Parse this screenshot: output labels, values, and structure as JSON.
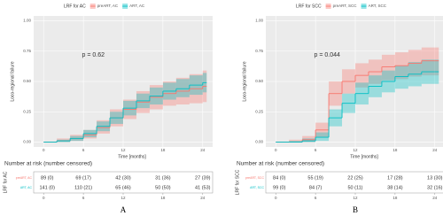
{
  "chart_data": [
    {
      "type": "step",
      "legend_title": "LRF for AC",
      "annotation": "p = 0.62",
      "panel_label": "A",
      "ylabel": "Loco-regional failure",
      "xlabel": "Time [months]",
      "xlim": [
        -1.5,
        25.5
      ],
      "ylim": [
        -0.04,
        1.04
      ],
      "xticks": [
        0,
        6,
        12,
        18,
        24
      ],
      "yticks": [
        {
          "value": 0,
          "label": "0.00"
        },
        {
          "value": 0.25,
          "label": "0.25"
        },
        {
          "value": 0.5,
          "label": "0.50"
        },
        {
          "value": 0.75,
          "label": "0.75"
        },
        {
          "value": 1,
          "label": "1.00"
        }
      ],
      "grid": true,
      "series": [
        {
          "name": "preART, AC",
          "color": "#f8766d",
          "x": [
            0,
            2,
            4,
            6,
            8,
            10,
            12,
            14,
            16,
            18,
            20,
            22,
            24
          ],
          "values": [
            0,
            0.01,
            0.03,
            0.06,
            0.12,
            0.2,
            0.27,
            0.33,
            0.37,
            0.4,
            0.42,
            0.44,
            0.46
          ],
          "lower": [
            0,
            0,
            0.01,
            0.03,
            0.07,
            0.13,
            0.19,
            0.24,
            0.27,
            0.3,
            0.31,
            0.32,
            0.33
          ],
          "upper": [
            0,
            0.03,
            0.06,
            0.1,
            0.18,
            0.27,
            0.35,
            0.42,
            0.47,
            0.5,
            0.53,
            0.56,
            0.59
          ]
        },
        {
          "name": "ART, AC",
          "color": "#00bfc4",
          "x": [
            0,
            2,
            4,
            6,
            8,
            10,
            12,
            14,
            16,
            18,
            20,
            22,
            24
          ],
          "values": [
            0,
            0.01,
            0.03,
            0.07,
            0.13,
            0.2,
            0.28,
            0.34,
            0.38,
            0.42,
            0.44,
            0.47,
            0.49
          ],
          "lower": [
            0,
            0,
            0.01,
            0.04,
            0.09,
            0.15,
            0.22,
            0.28,
            0.31,
            0.35,
            0.37,
            0.39,
            0.41
          ],
          "upper": [
            0,
            0.02,
            0.05,
            0.1,
            0.17,
            0.25,
            0.34,
            0.4,
            0.45,
            0.49,
            0.52,
            0.55,
            0.57
          ]
        }
      ],
      "risk_table": {
        "title": "Number at risk (number censored)",
        "ylabel": "LRF for AC",
        "rows": [
          {
            "name": "preART, AC",
            "values": [
              "89 (0)",
              "69 (17)",
              "42 (30)",
              "31 (36)",
              "27 (39)"
            ]
          },
          {
            "name": "ART, AC",
            "values": [
              "141 (0)",
              "110 (21)",
              "65 (46)",
              "50 (50)",
              "41 (53)"
            ]
          }
        ]
      }
    },
    {
      "type": "step",
      "legend_title": "LRF for SCC",
      "annotation": "p = 0.044",
      "panel_label": "B",
      "ylabel": "Loco-regional failure",
      "xlabel": "Time [months]",
      "xlim": [
        -1.5,
        25.5
      ],
      "ylim": [
        -0.04,
        1.04
      ],
      "xticks": [
        0,
        6,
        12,
        18,
        24
      ],
      "yticks": [
        {
          "value": 0,
          "label": "0.00"
        },
        {
          "value": 0.25,
          "label": "0.25"
        },
        {
          "value": 0.5,
          "label": "0.50"
        },
        {
          "value": 0.75,
          "label": "0.75"
        },
        {
          "value": 1,
          "label": "1.00"
        }
      ],
      "grid": true,
      "series": [
        {
          "name": "preART, SCC",
          "color": "#f8766d",
          "x": [
            0,
            2,
            4,
            6,
            8,
            10,
            12,
            14,
            16,
            18,
            20,
            22,
            24
          ],
          "values": [
            0,
            0,
            0.02,
            0.1,
            0.4,
            0.5,
            0.55,
            0.58,
            0.62,
            0.63,
            0.65,
            0.67,
            0.67
          ],
          "lower": [
            0,
            0,
            0,
            0.04,
            0.3,
            0.4,
            0.45,
            0.48,
            0.51,
            0.52,
            0.54,
            0.55,
            0.55
          ],
          "upper": [
            0,
            0.02,
            0.05,
            0.16,
            0.5,
            0.6,
            0.65,
            0.68,
            0.72,
            0.74,
            0.76,
            0.78,
            0.78
          ]
        },
        {
          "name": "ART, SCC",
          "color": "#00bfc4",
          "x": [
            0,
            2,
            4,
            6,
            8,
            10,
            12,
            14,
            16,
            18,
            20,
            22,
            24
          ],
          "values": [
            0,
            0,
            0.01,
            0.04,
            0.2,
            0.32,
            0.4,
            0.46,
            0.5,
            0.54,
            0.56,
            0.58,
            0.58
          ],
          "lower": [
            0,
            0,
            0,
            0.01,
            0.13,
            0.24,
            0.31,
            0.37,
            0.41,
            0.44,
            0.46,
            0.48,
            0.48
          ],
          "upper": [
            0,
            0.01,
            0.03,
            0.08,
            0.27,
            0.4,
            0.49,
            0.55,
            0.59,
            0.63,
            0.66,
            0.68,
            0.68
          ]
        }
      ],
      "risk_table": {
        "title": "Number at risk (number censored)",
        "ylabel": "LRF for SCC",
        "rows": [
          {
            "name": "preART, SCC",
            "values": [
              "84 (0)",
              "55 (19)",
              "22 (25)",
              "17 (28)",
              "13 (30)"
            ]
          },
          {
            "name": "ART, SCC",
            "values": [
              "99 (0)",
              "84 (7)",
              "50 (11)",
              "38 (14)",
              "32 (16)"
            ]
          }
        ]
      }
    }
  ]
}
